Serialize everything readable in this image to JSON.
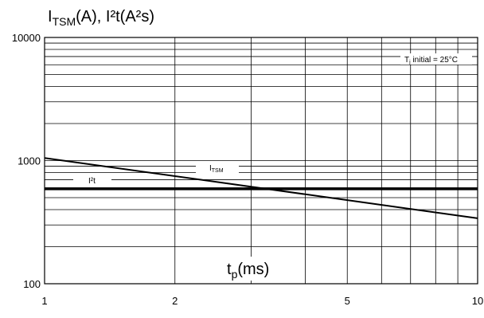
{
  "chart_data": {
    "type": "line",
    "title_main": "I",
    "title_sub": "TSM",
    "title_rest": "(A), I²t(A²s)",
    "xlabel_main": "t",
    "xlabel_sub": "p",
    "xlabel_rest": "(ms)",
    "x_scale": "log",
    "y_scale": "log",
    "xlim": [
      1,
      10
    ],
    "ylim": [
      100,
      10000
    ],
    "grid": true,
    "x_ticks": [
      {
        "value": 1,
        "label": "1"
      },
      {
        "value": 2,
        "label": "2"
      },
      {
        "value": 5,
        "label": "5"
      },
      {
        "value": 10,
        "label": "10"
      }
    ],
    "y_ticks": [
      {
        "value": 100,
        "label": "100"
      },
      {
        "value": 1000,
        "label": "1000"
      },
      {
        "value": 10000,
        "label": "10000"
      }
    ],
    "annotation": {
      "main": "T",
      "sub": "j",
      "rest": " initial = 25°C"
    },
    "series": [
      {
        "name_main": "I",
        "name_sub": "TSM",
        "x": [
          1,
          10
        ],
        "y": [
          1050,
          340
        ],
        "stroke_width": 2
      },
      {
        "name_main": "I²t",
        "name_sub": "",
        "x": [
          1,
          10
        ],
        "y": [
          590,
          590
        ],
        "stroke_width": 3.5
      }
    ]
  }
}
